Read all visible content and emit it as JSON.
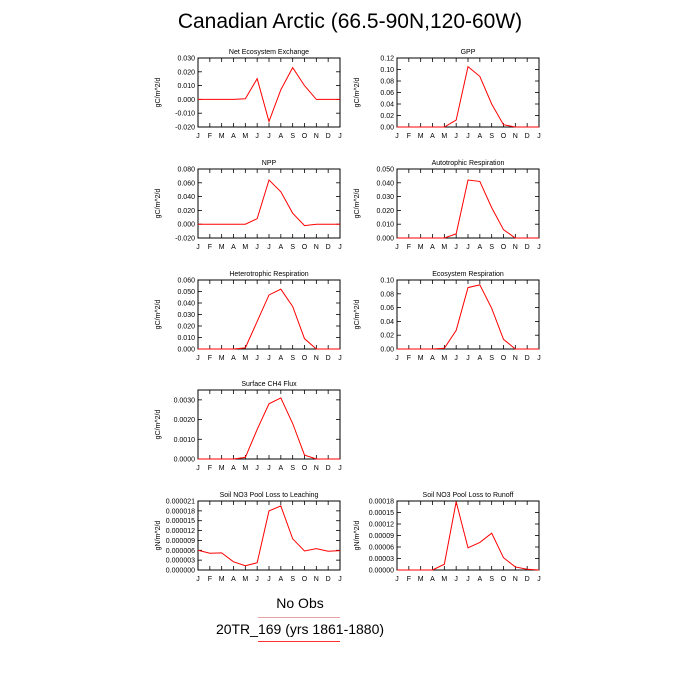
{
  "page": {
    "title": "Canadian Arctic (66.5-90N,120-60W)"
  },
  "legend": {
    "obs_label": "No Obs",
    "run_label": "20TR_169 (yrs 1861-1880)",
    "series_color": "#ff0000"
  },
  "chart_data": [
    {
      "type": "line",
      "title": "Net Ecosystem Exchange",
      "ylabel": "gC/m^2/d",
      "x": [
        "J",
        "F",
        "M",
        "A",
        "M",
        "J",
        "J",
        "A",
        "S",
        "O",
        "N",
        "D",
        "J"
      ],
      "ylim": [
        -0.02,
        0.03
      ],
      "yticks": [
        "0.030",
        "0.020",
        "0.010",
        "0.000",
        "-0.010",
        "-0.020"
      ],
      "values": [
        0.0,
        0.0,
        0.0,
        0.0,
        0.0005,
        0.015,
        -0.016,
        0.007,
        0.023,
        0.01,
        0.0,
        0.0,
        0.0
      ]
    },
    {
      "type": "line",
      "title": "GPP",
      "ylabel": "gC/m^2/d",
      "x": [
        "J",
        "F",
        "M",
        "A",
        "M",
        "J",
        "J",
        "A",
        "S",
        "O",
        "N",
        "D",
        "J"
      ],
      "ylim": [
        0,
        0.12
      ],
      "yticks": [
        "0.12",
        "0.10",
        "0.08",
        "0.06",
        "0.04",
        "0.02",
        "0.00"
      ],
      "values": [
        0.0,
        0.0,
        0.0,
        0.0,
        0.0,
        0.012,
        0.105,
        0.088,
        0.04,
        0.004,
        0.0,
        0.0,
        0.0
      ]
    },
    {
      "type": "line",
      "title": "NPP",
      "ylabel": "gC/m^2/d",
      "x": [
        "J",
        "F",
        "M",
        "A",
        "M",
        "J",
        "J",
        "A",
        "S",
        "O",
        "N",
        "D",
        "J"
      ],
      "ylim": [
        -0.02,
        0.08
      ],
      "yticks": [
        "0.080",
        "0.060",
        "0.040",
        "0.020",
        "0.000",
        "-0.020"
      ],
      "values": [
        0.0,
        0.0,
        0.0,
        0.0,
        0.0,
        0.008,
        0.064,
        0.047,
        0.016,
        -0.002,
        0.0,
        0.0,
        0.0
      ]
    },
    {
      "type": "line",
      "title": "Autotrophic Respiration",
      "ylabel": "gC/m^2/d",
      "x": [
        "J",
        "F",
        "M",
        "A",
        "M",
        "J",
        "J",
        "A",
        "S",
        "O",
        "N",
        "D",
        "J"
      ],
      "ylim": [
        0,
        0.05
      ],
      "yticks": [
        "0.050",
        "0.040",
        "0.030",
        "0.020",
        "0.010",
        "0.000"
      ],
      "values": [
        0.0,
        0.0,
        0.0,
        0.0,
        0.0,
        0.003,
        0.042,
        0.041,
        0.022,
        0.006,
        0.0,
        0.0,
        0.0
      ]
    },
    {
      "type": "line",
      "title": "Heterotrophic Respiration",
      "ylabel": "gC/m^2/d",
      "x": [
        "J",
        "F",
        "M",
        "A",
        "M",
        "J",
        "J",
        "A",
        "S",
        "O",
        "N",
        "D",
        "J"
      ],
      "ylim": [
        0,
        0.06
      ],
      "yticks": [
        "0.060",
        "0.050",
        "0.040",
        "0.030",
        "0.020",
        "0.010",
        "0.000"
      ],
      "values": [
        0.0,
        0.0,
        0.0,
        0.0,
        0.001,
        0.024,
        0.047,
        0.052,
        0.037,
        0.009,
        0.0,
        0.0,
        0.0
      ]
    },
    {
      "type": "line",
      "title": "Ecosystem Respiration",
      "ylabel": "gC/m^2/d",
      "x": [
        "J",
        "F",
        "M",
        "A",
        "M",
        "J",
        "J",
        "A",
        "S",
        "O",
        "N",
        "D",
        "J"
      ],
      "ylim": [
        0,
        0.1
      ],
      "yticks": [
        "0.10",
        "0.08",
        "0.06",
        "0.04",
        "0.02",
        "0.00"
      ],
      "values": [
        0.0,
        0.0,
        0.0,
        0.0,
        0.001,
        0.027,
        0.089,
        0.093,
        0.059,
        0.014,
        0.0,
        0.0,
        0.0
      ]
    },
    {
      "type": "line",
      "title": "Surface CH4 Flux",
      "ylabel": "gC/m^2/d",
      "x": [
        "J",
        "F",
        "M",
        "A",
        "M",
        "J",
        "J",
        "A",
        "S",
        "O",
        "N",
        "D",
        "J"
      ],
      "ylim": [
        0,
        0.0035
      ],
      "yticks": [
        "0.0030",
        "0.0020",
        "0.0010",
        "0.0000"
      ],
      "ytick_values": [
        0.003,
        0.002,
        0.001,
        0.0
      ],
      "values": [
        0.0,
        0.0,
        0.0,
        0.0,
        8e-05,
        0.0015,
        0.0028,
        0.0031,
        0.0018,
        0.0002,
        0.0,
        0.0,
        0.0
      ]
    },
    {
      "type": "line",
      "title": "Soil NO3 Pool Loss to Leaching",
      "ylabel": "gN/m^2/d",
      "x": [
        "J",
        "F",
        "M",
        "A",
        "M",
        "J",
        "J",
        "A",
        "S",
        "O",
        "N",
        "D",
        "J"
      ],
      "ylim": [
        0,
        2.1e-05
      ],
      "yticks": [
        "0.000021",
        "0.000018",
        "0.000015",
        "0.000012",
        "0.000009",
        "0.000006",
        "0.000003",
        "0.000000"
      ],
      "values": [
        6e-06,
        5.1e-06,
        5.2e-06,
        2.5e-06,
        1.3e-06,
        2.2e-06,
        1.8e-05,
        1.95e-05,
        9.5e-06,
        5.8e-06,
        6.5e-06,
        5.7e-06,
        5.9e-06
      ]
    },
    {
      "type": "line",
      "title": "Soil NO3 Pool Loss to Runoff",
      "ylabel": "gN/m^2/d",
      "x": [
        "J",
        "F",
        "M",
        "A",
        "M",
        "J",
        "J",
        "A",
        "S",
        "O",
        "N",
        "D",
        "J"
      ],
      "ylim": [
        0,
        0.00018
      ],
      "yticks": [
        "0.00018",
        "0.00015",
        "0.00012",
        "0.00009",
        "0.00006",
        "0.00003",
        "0.00000"
      ],
      "values": [
        0.0,
        0.0,
        0.0,
        0.0,
        1.5e-05,
        0.000178,
        5.8e-05,
        7.2e-05,
        9.6e-05,
        3.2e-05,
        8e-06,
        2e-06,
        0.0
      ]
    }
  ]
}
